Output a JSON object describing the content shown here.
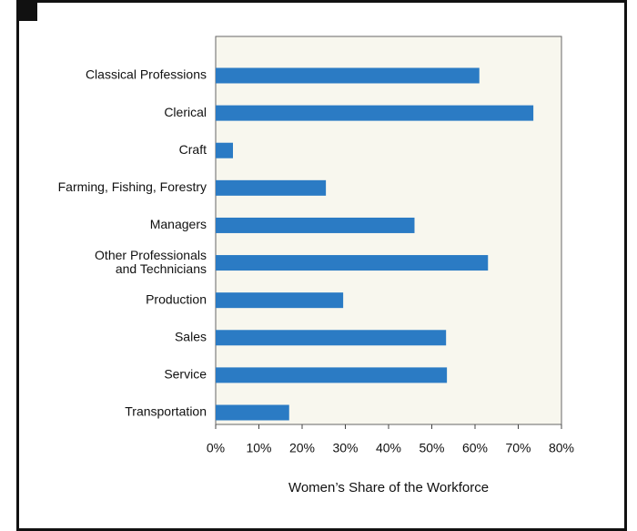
{
  "chart_data": {
    "type": "bar",
    "orientation": "horizontal",
    "x_label": "Women’s Share of the Workforce",
    "categories": [
      "Classical Professions",
      "Clerical",
      "Craft",
      "Farming, Fishing, Forestry",
      "Managers",
      "Other Professionals\nand Technicians",
      "Production",
      "Sales",
      "Service",
      "Transportation"
    ],
    "values": [
      61,
      73.5,
      4,
      25.5,
      46,
      63,
      29.5,
      53.3,
      53.5,
      17
    ],
    "color": "#2b7bc4",
    "xlim": [
      0,
      80
    ],
    "xticks": [
      {
        "value": 0,
        "label": "0%"
      },
      {
        "value": 10,
        "label": "10%"
      },
      {
        "value": 20,
        "label": "20%"
      },
      {
        "value": 30,
        "label": "30%"
      },
      {
        "value": 40,
        "label": "40%"
      },
      {
        "value": 50,
        "label": "50%"
      },
      {
        "value": 60,
        "label": "60%"
      },
      {
        "value": 70,
        "label": "70%"
      },
      {
        "value": 80,
        "label": "80%"
      }
    ]
  }
}
